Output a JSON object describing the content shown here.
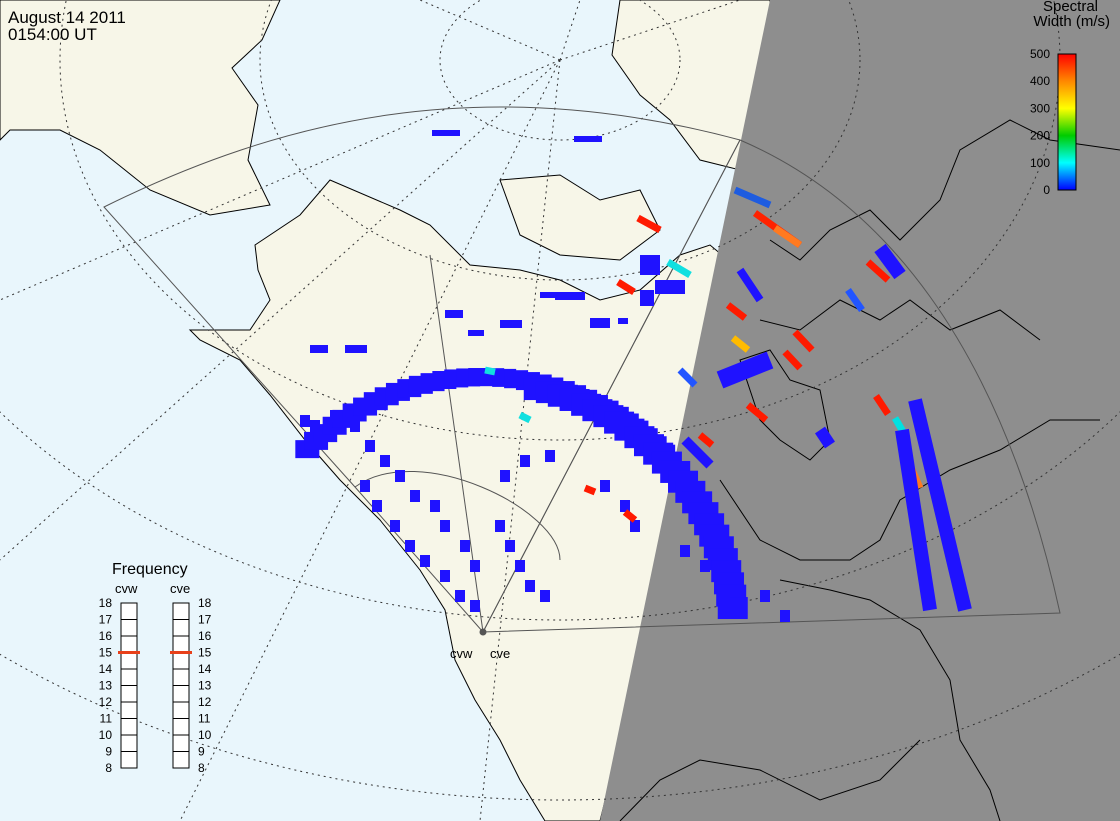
{
  "header": {
    "date": "August 14 2011",
    "time": "0154:00 UT"
  },
  "colorbar": {
    "title_line1": "Spectral",
    "title_line2": "Width (m/s)",
    "ticks": [
      "500",
      "400",
      "300",
      "200",
      "100",
      "0"
    ],
    "gradient": [
      "#ff0000",
      "#ff8800",
      "#ffff00",
      "#00cc00",
      "#00ffff",
      "#0000ff"
    ]
  },
  "frequency_panel": {
    "title": "Frequency",
    "radars": [
      {
        "label": "cvw",
        "frequency": 15
      },
      {
        "label": "cve",
        "frequency": 15
      }
    ],
    "scale": [
      "18",
      "17",
      "16",
      "15",
      "14",
      "13",
      "12",
      "11",
      "10",
      "9",
      "8"
    ]
  },
  "site_labels": [
    "cvw",
    "cve"
  ],
  "colors": {
    "ocean": "#e9f6fc",
    "land": "#f7f6e8",
    "night": "#8e8e8e",
    "low_width": "#1f12ff",
    "high_width": "#ff0000",
    "marker": "#e8401a"
  }
}
